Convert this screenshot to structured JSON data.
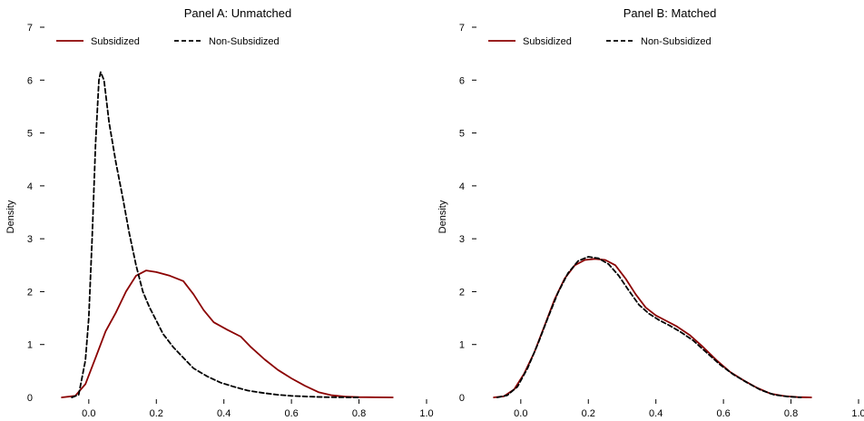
{
  "chart_data": [
    {
      "type": "line",
      "title": "Panel A: Unmatched",
      "xlabel": "",
      "ylabel": "Density",
      "xlim": [
        -0.15,
        1.0
      ],
      "ylim": [
        0,
        7
      ],
      "xticks": [
        "0.0",
        "0.2",
        "0.4",
        "0.6",
        "0.8",
        "1.0"
      ],
      "yticks": [
        "0",
        "1",
        "2",
        "3",
        "4",
        "5",
        "6",
        "7"
      ],
      "legend": "top-left",
      "series": [
        {
          "name": "Subsidized",
          "color": "#8b0000",
          "style": "solid",
          "points": [
            [
              -0.08,
              0
            ],
            [
              -0.04,
              0.03
            ],
            [
              -0.01,
              0.25
            ],
            [
              0.02,
              0.75
            ],
            [
              0.05,
              1.25
            ],
            [
              0.08,
              1.6
            ],
            [
              0.11,
              2.0
            ],
            [
              0.14,
              2.3
            ],
            [
              0.17,
              2.4
            ],
            [
              0.2,
              2.37
            ],
            [
              0.24,
              2.3
            ],
            [
              0.28,
              2.2
            ],
            [
              0.31,
              1.95
            ],
            [
              0.34,
              1.65
            ],
            [
              0.37,
              1.42
            ],
            [
              0.41,
              1.28
            ],
            [
              0.45,
              1.15
            ],
            [
              0.48,
              0.95
            ],
            [
              0.52,
              0.72
            ],
            [
              0.56,
              0.52
            ],
            [
              0.6,
              0.36
            ],
            [
              0.64,
              0.22
            ],
            [
              0.68,
              0.1
            ],
            [
              0.72,
              0.04
            ],
            [
              0.76,
              0.015
            ],
            [
              0.8,
              0.005
            ],
            [
              0.85,
              0.001
            ],
            [
              0.9,
              0
            ]
          ]
        },
        {
          "name": "Non-Subsidized",
          "color": "#000000",
          "style": "dashed",
          "points": [
            [
              -0.05,
              0
            ],
            [
              -0.03,
              0.05
            ],
            [
              -0.01,
              0.7
            ],
            [
              0.0,
              1.5
            ],
            [
              0.01,
              3.0
            ],
            [
              0.02,
              4.8
            ],
            [
              0.03,
              6.0
            ],
            [
              0.035,
              6.15
            ],
            [
              0.045,
              6.0
            ],
            [
              0.06,
              5.2
            ],
            [
              0.08,
              4.45
            ],
            [
              0.1,
              3.8
            ],
            [
              0.12,
              3.1
            ],
            [
              0.14,
              2.5
            ],
            [
              0.16,
              2.0
            ],
            [
              0.18,
              1.7
            ],
            [
              0.2,
              1.45
            ],
            [
              0.22,
              1.2
            ],
            [
              0.25,
              0.95
            ],
            [
              0.28,
              0.75
            ],
            [
              0.31,
              0.55
            ],
            [
              0.35,
              0.4
            ],
            [
              0.39,
              0.28
            ],
            [
              0.43,
              0.2
            ],
            [
              0.47,
              0.13
            ],
            [
              0.52,
              0.08
            ],
            [
              0.56,
              0.05
            ],
            [
              0.6,
              0.03
            ],
            [
              0.65,
              0.015
            ],
            [
              0.7,
              0.006
            ],
            [
              0.75,
              0.002
            ],
            [
              0.8,
              0
            ]
          ]
        }
      ]
    },
    {
      "type": "line",
      "title": "Panel B: Matched",
      "xlabel": "",
      "ylabel": "Density",
      "xlim": [
        -0.15,
        1.0
      ],
      "ylim": [
        0,
        7
      ],
      "xticks": [
        "0.0",
        "0.2",
        "0.4",
        "0.6",
        "0.8",
        "1.0"
      ],
      "yticks": [
        "0",
        "1",
        "2",
        "3",
        "4",
        "5",
        "6",
        "7"
      ],
      "legend": "top-left",
      "series": [
        {
          "name": "Subsidized",
          "color": "#8b0000",
          "style": "solid",
          "points": [
            [
              -0.08,
              0
            ],
            [
              -0.05,
              0.02
            ],
            [
              -0.02,
              0.15
            ],
            [
              0.01,
              0.45
            ],
            [
              0.04,
              0.85
            ],
            [
              0.07,
              1.35
            ],
            [
              0.1,
              1.85
            ],
            [
              0.13,
              2.25
            ],
            [
              0.16,
              2.5
            ],
            [
              0.19,
              2.6
            ],
            [
              0.22,
              2.62
            ],
            [
              0.25,
              2.6
            ],
            [
              0.28,
              2.5
            ],
            [
              0.31,
              2.25
            ],
            [
              0.34,
              1.95
            ],
            [
              0.37,
              1.7
            ],
            [
              0.4,
              1.55
            ],
            [
              0.43,
              1.45
            ],
            [
              0.46,
              1.35
            ],
            [
              0.5,
              1.18
            ],
            [
              0.54,
              0.95
            ],
            [
              0.58,
              0.7
            ],
            [
              0.62,
              0.48
            ],
            [
              0.66,
              0.32
            ],
            [
              0.7,
              0.18
            ],
            [
              0.74,
              0.07
            ],
            [
              0.78,
              0.025
            ],
            [
              0.82,
              0.005
            ],
            [
              0.86,
              0
            ]
          ]
        },
        {
          "name": "Non-Subsidized",
          "color": "#000000",
          "style": "dashed",
          "points": [
            [
              -0.07,
              0
            ],
            [
              -0.04,
              0.04
            ],
            [
              -0.01,
              0.2
            ],
            [
              0.02,
              0.55
            ],
            [
              0.05,
              1.0
            ],
            [
              0.08,
              1.5
            ],
            [
              0.11,
              1.98
            ],
            [
              0.14,
              2.35
            ],
            [
              0.17,
              2.58
            ],
            [
              0.2,
              2.66
            ],
            [
              0.23,
              2.63
            ],
            [
              0.26,
              2.52
            ],
            [
              0.29,
              2.3
            ],
            [
              0.32,
              2.02
            ],
            [
              0.35,
              1.75
            ],
            [
              0.38,
              1.58
            ],
            [
              0.41,
              1.46
            ],
            [
              0.44,
              1.36
            ],
            [
              0.47,
              1.25
            ],
            [
              0.51,
              1.08
            ],
            [
              0.55,
              0.85
            ],
            [
              0.59,
              0.62
            ],
            [
              0.63,
              0.43
            ],
            [
              0.67,
              0.28
            ],
            [
              0.71,
              0.14
            ],
            [
              0.75,
              0.05
            ],
            [
              0.79,
              0.015
            ],
            [
              0.83,
              0
            ]
          ]
        }
      ]
    }
  ]
}
